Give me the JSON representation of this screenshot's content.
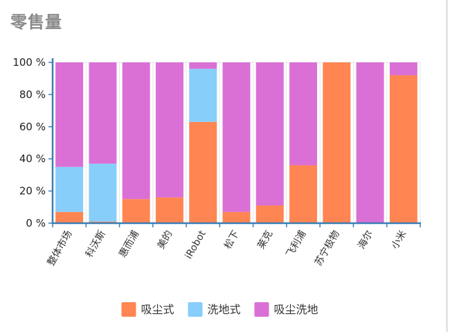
{
  "chart_data": {
    "type": "bar",
    "stacked": true,
    "normalized": true,
    "title": "零售量",
    "xlabel": "",
    "ylabel": "",
    "ylim": [
      0,
      100
    ],
    "yticks": [
      "0 %",
      "20 %",
      "40 %",
      "60 %",
      "80 %",
      "100 %"
    ],
    "categories": [
      "整体市场",
      "科沃斯",
      "惠而浦",
      "美的",
      "iRobot",
      "松下",
      "莱克",
      "飞利浦",
      "苏宁极物",
      "海尔",
      "小米"
    ],
    "series": [
      {
        "name": "吸尘式",
        "color": "#FF8552",
        "values": [
          7,
          1,
          15,
          16,
          63,
          7,
          11,
          36,
          100,
          0,
          92
        ]
      },
      {
        "name": "洗地式",
        "color": "#87CEFA",
        "values": [
          28,
          36,
          0,
          0,
          33,
          0,
          0,
          0,
          0,
          0,
          0
        ]
      },
      {
        "name": "吸尘洗地",
        "color": "#DA70D6",
        "values": [
          65,
          63,
          85,
          84,
          4,
          93,
          89,
          64,
          0,
          100,
          8
        ]
      }
    ],
    "grid": true,
    "legend": "bottom-center"
  }
}
